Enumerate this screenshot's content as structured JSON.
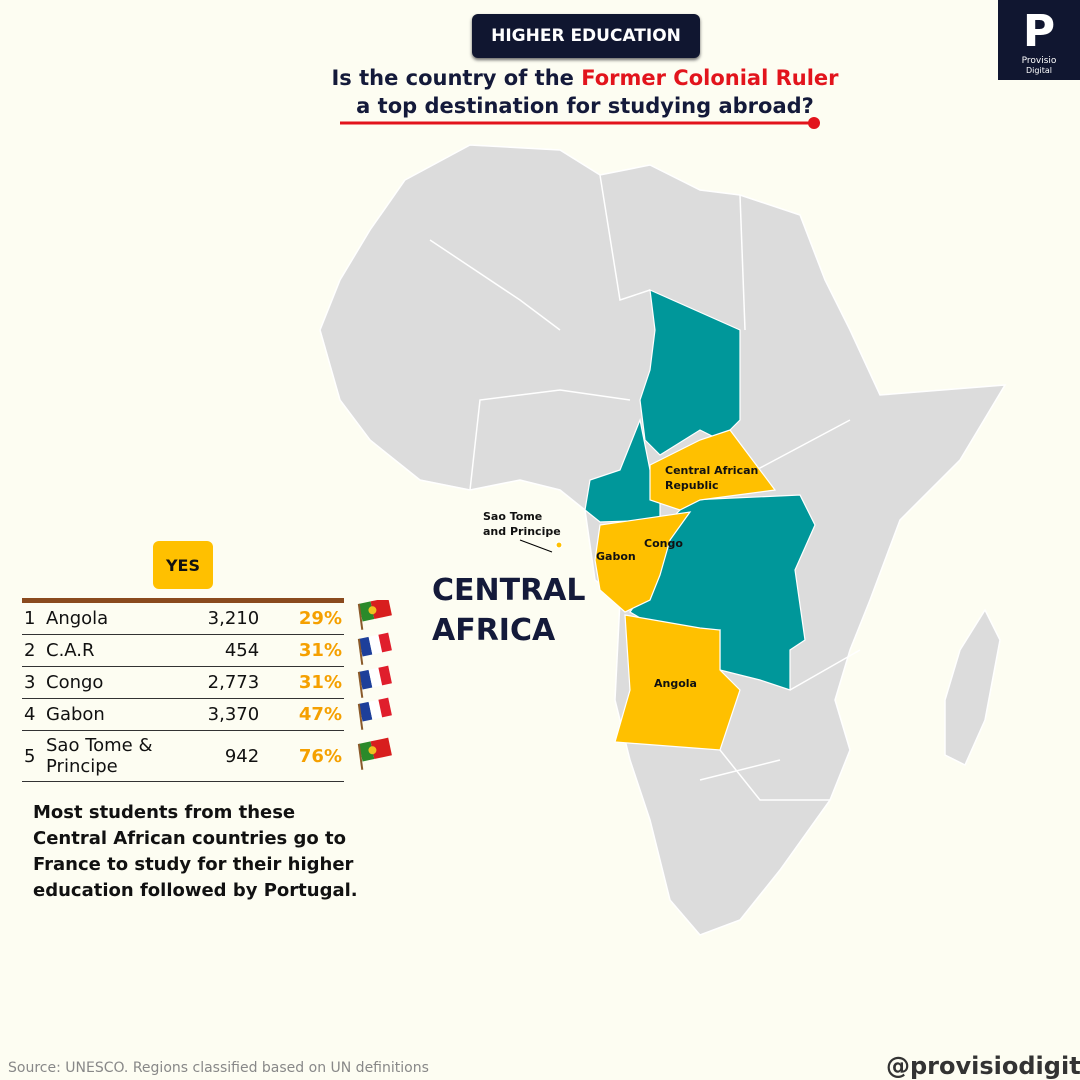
{
  "header": {
    "tag": "HIGHER EDUCATION",
    "question_part1": "Is the country of the",
    "question_highlight": "Former Colonial Ruler",
    "question_part2": "a top destination for studying abroad?"
  },
  "logo": {
    "letter": "P",
    "line1": "Provisio",
    "line2": "Digital"
  },
  "map": {
    "region_label": [
      "CENTRAL",
      "AFRICA"
    ],
    "labels": {
      "car": [
        "Central African",
        "Republic"
      ],
      "stp": [
        "Sao Tome",
        "and Principe"
      ],
      "gabon": "Gabon",
      "congo": "Congo",
      "angola": "Angola"
    }
  },
  "table": {
    "badge": "YES",
    "rows": [
      [
        "1",
        "Angola",
        "3,210",
        "29%"
      ],
      [
        "2",
        "C.A.R",
        "454",
        "31%"
      ],
      [
        "3",
        "Congo",
        "2,773",
        "31%"
      ],
      [
        "4",
        "Gabon",
        "3,370",
        "47%"
      ],
      [
        "5",
        "Sao Tome & Principe",
        "942",
        "76%"
      ]
    ]
  },
  "note": "Most students from these Central African countries go to France to study for their higher education followed by Portugal.",
  "footer": {
    "source": "Source: UNESCO.  Regions classified based on UN definitions",
    "handle": "@provisiodigital"
  }
}
